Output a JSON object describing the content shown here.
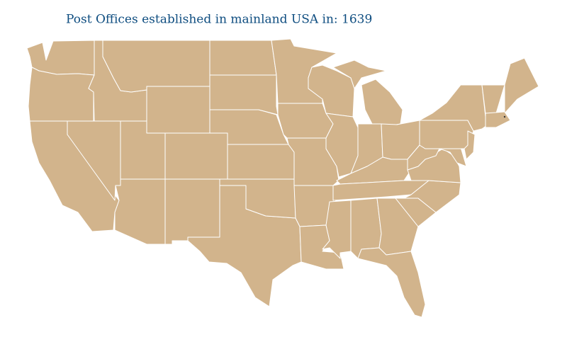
{
  "title": "Post Offices established in mainland USA in: 1639"
}
